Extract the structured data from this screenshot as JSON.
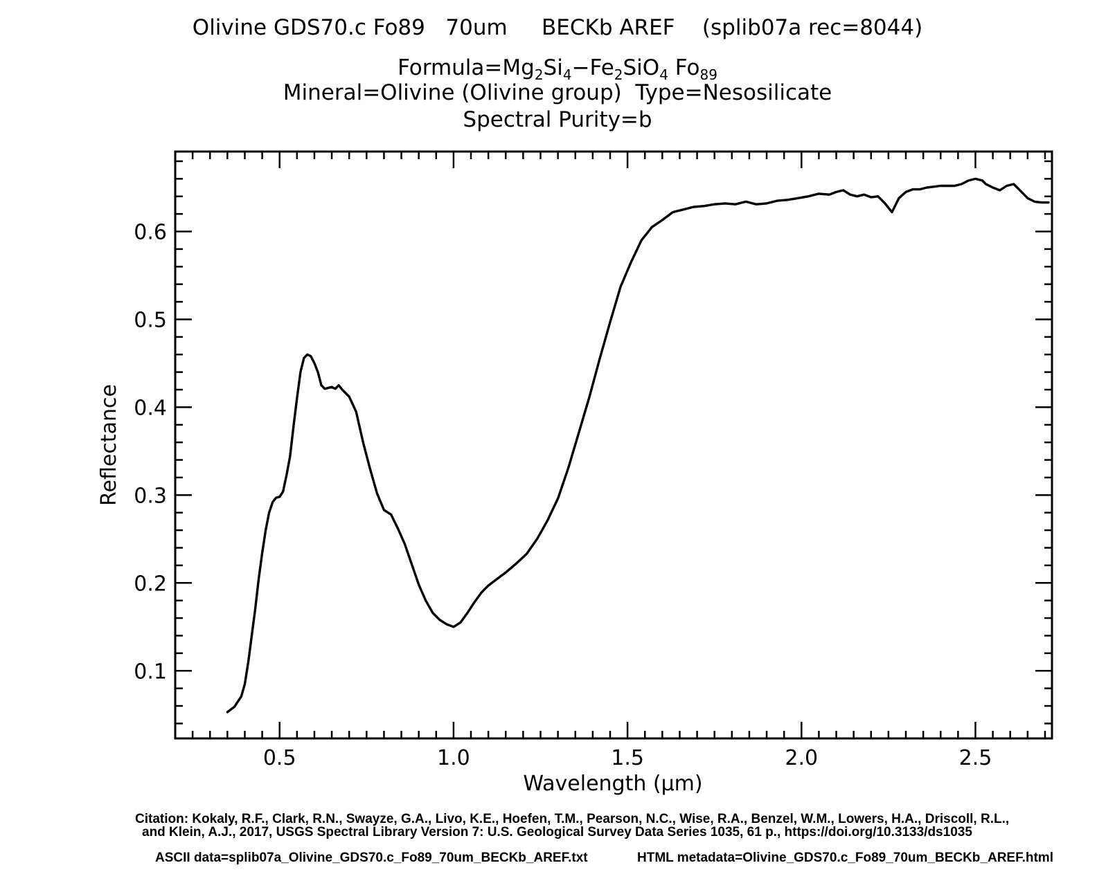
{
  "header": {
    "title_line1": "Olivine GDS70.c Fo89   70um     BECKb AREF    (splib07a rec=8044)",
    "formula_prefix": "Formula=Mg",
    "formula_sub1": "2",
    "formula_si": "Si",
    "formula_sub2": "4",
    "formula_mid": "−Fe",
    "formula_sub3": "2",
    "formula_sio": "SiO",
    "formula_sub4": "4",
    "formula_fo": " Fo",
    "formula_sub5": "89",
    "mineral_line": "Mineral=Olivine (Olivine group)  Type=Nesosilicate",
    "purity_line": "Spectral Purity=b"
  },
  "footer": {
    "citation_line1": "Citation: Kokaly, R.F., Clark, R.N., Swayze, G.A., Livo, K.E., Hoefen, T.M., Pearson, N.C., Wise, R.A., Benzel, W.M., Lowers, H.A., Driscoll, R.L.,",
    "citation_line2": "and Klein, A.J., 2017, USGS Spectral Library Version 7: U.S. Geological Survey Data Series 1035, 61 p., https://doi.org/10.3133/ds1035",
    "ascii_data": "ASCII data=splib07a_Olivine_GDS70.c_Fo89_70um_BECKb_AREF.txt",
    "html_metadata": "HTML metadata=Olivine_GDS70.c_Fo89_70um_BECKb_AREF.html"
  },
  "chart_data": {
    "type": "line",
    "title": "Olivine GDS70.c Fo89   70um     BECKb AREF    (splib07a rec=8044)",
    "xlabel": "Wavelength (μm)",
    "ylabel": "Reflectance",
    "xlim": [
      0.2,
      2.72
    ],
    "ylim": [
      0.023,
      0.691
    ],
    "xticks": [
      0.5,
      1.0,
      1.5,
      2.0,
      2.5
    ],
    "xtick_labels": [
      "0.5",
      "1.0",
      "1.5",
      "2.0",
      "2.5"
    ],
    "yticks": [
      0.1,
      0.2,
      0.3,
      0.4,
      0.5,
      0.6
    ],
    "ytick_labels": [
      "0.1",
      "0.2",
      "0.3",
      "0.4",
      "0.5",
      "0.6"
    ],
    "grid": false,
    "color": "#000000",
    "series": [
      {
        "x": [
          0.35,
          0.37,
          0.39,
          0.4,
          0.41,
          0.42,
          0.43,
          0.44,
          0.45,
          0.46,
          0.47,
          0.48,
          0.49,
          0.5,
          0.51,
          0.52,
          0.53,
          0.54,
          0.55,
          0.56,
          0.57,
          0.58,
          0.59,
          0.6,
          0.61,
          0.62,
          0.63,
          0.64,
          0.65,
          0.66,
          0.67,
          0.68,
          0.69,
          0.7,
          0.72,
          0.74,
          0.76,
          0.78,
          0.8,
          0.82,
          0.84,
          0.86,
          0.88,
          0.9,
          0.92,
          0.94,
          0.96,
          0.98,
          1.0,
          1.02,
          1.04,
          1.06,
          1.08,
          1.1,
          1.12,
          1.15,
          1.18,
          1.21,
          1.24,
          1.27,
          1.3,
          1.33,
          1.36,
          1.39,
          1.42,
          1.45,
          1.48,
          1.51,
          1.54,
          1.57,
          1.6,
          1.63,
          1.66,
          1.69,
          1.72,
          1.75,
          1.78,
          1.81,
          1.84,
          1.87,
          1.9,
          1.93,
          1.96,
          1.99,
          2.02,
          2.05,
          2.08,
          2.1,
          2.12,
          2.14,
          2.16,
          2.18,
          2.2,
          2.22,
          2.24,
          2.26,
          2.28,
          2.3,
          2.32,
          2.34,
          2.36,
          2.38,
          2.4,
          2.42,
          2.44,
          2.46,
          2.48,
          2.5,
          2.52,
          2.53,
          2.55,
          2.57,
          2.59,
          2.61,
          2.63,
          2.65,
          2.67,
          2.69,
          2.71
        ],
        "y": [
          0.053,
          0.059,
          0.071,
          0.085,
          0.11,
          0.14,
          0.17,
          0.205,
          0.234,
          0.26,
          0.28,
          0.292,
          0.297,
          0.298,
          0.304,
          0.323,
          0.344,
          0.378,
          0.41,
          0.44,
          0.456,
          0.46,
          0.458,
          0.45,
          0.44,
          0.425,
          0.421,
          0.422,
          0.423,
          0.421,
          0.425,
          0.42,
          0.416,
          0.412,
          0.395,
          0.36,
          0.33,
          0.302,
          0.283,
          0.278,
          0.262,
          0.244,
          0.221,
          0.198,
          0.18,
          0.166,
          0.158,
          0.153,
          0.15,
          0.155,
          0.166,
          0.178,
          0.189,
          0.197,
          0.203,
          0.212,
          0.222,
          0.233,
          0.25,
          0.271,
          0.296,
          0.331,
          0.371,
          0.411,
          0.455,
          0.497,
          0.537,
          0.565,
          0.59,
          0.605,
          0.613,
          0.622,
          0.625,
          0.628,
          0.629,
          0.631,
          0.632,
          0.631,
          0.634,
          0.631,
          0.632,
          0.635,
          0.636,
          0.638,
          0.64,
          0.643,
          0.642,
          0.645,
          0.647,
          0.642,
          0.64,
          0.642,
          0.639,
          0.64,
          0.632,
          0.622,
          0.638,
          0.645,
          0.648,
          0.648,
          0.65,
          0.651,
          0.652,
          0.652,
          0.652,
          0.654,
          0.658,
          0.66,
          0.658,
          0.654,
          0.65,
          0.647,
          0.652,
          0.654,
          0.646,
          0.638,
          0.634,
          0.633,
          0.633
        ]
      }
    ]
  }
}
